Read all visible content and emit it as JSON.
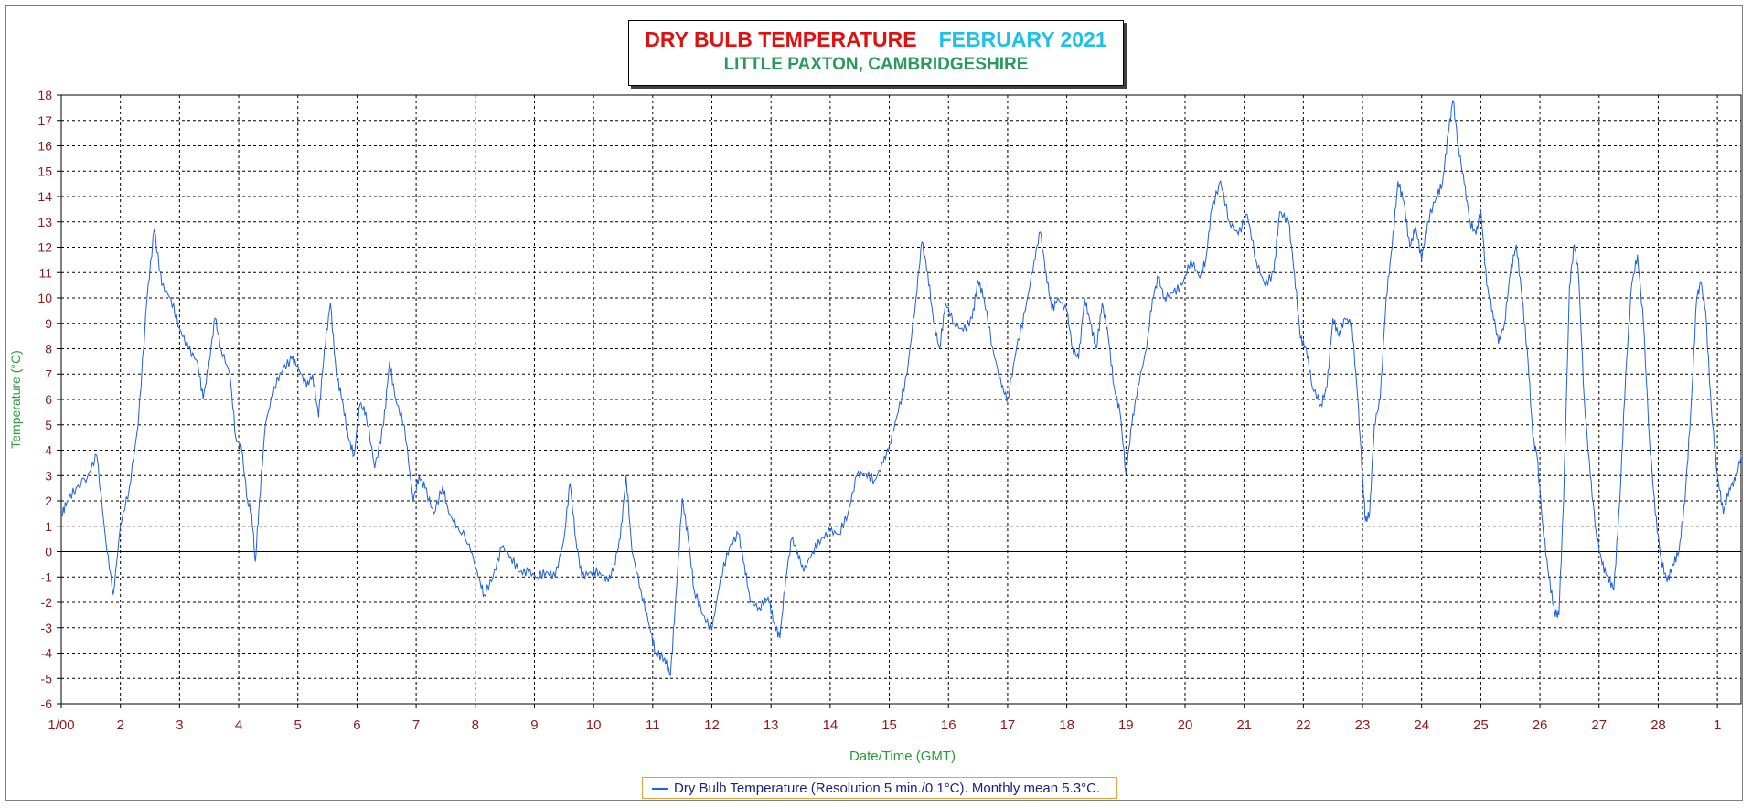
{
  "title": {
    "main": "DRY BULB TEMPERATURE",
    "month": "FEBRUARY 2021",
    "subtitle": "LITTLE PAXTON, CAMBRIDGESHIRE"
  },
  "legend": {
    "text": "Dry Bulb Temperature (Resolution 5 min./0.1°C). Monthly mean 5.3°C."
  },
  "colors": {
    "series": "#1f5fe0",
    "tick_labels": "#8b1a1a",
    "axis_labels": "#2a9a3a",
    "title_main": "#e01010",
    "title_month": "#1ec0e8",
    "subtitle": "#2a9a5a"
  },
  "chart_data": {
    "type": "line",
    "xlabel": "Date/Time (GMT)",
    "ylabel": "Temperature (°C)",
    "ylim": [
      -6,
      18
    ],
    "xlim": [
      1,
      29.4
    ],
    "grid": true,
    "legend_position": "bottom-center",
    "x_ticks": [
      {
        "x": 1,
        "label": "1/00"
      },
      {
        "x": 2,
        "label": "2"
      },
      {
        "x": 3,
        "label": "3"
      },
      {
        "x": 4,
        "label": "4"
      },
      {
        "x": 5,
        "label": "5"
      },
      {
        "x": 6,
        "label": "6"
      },
      {
        "x": 7,
        "label": "7"
      },
      {
        "x": 8,
        "label": "8"
      },
      {
        "x": 9,
        "label": "9"
      },
      {
        "x": 10,
        "label": "10"
      },
      {
        "x": 11,
        "label": "11"
      },
      {
        "x": 12,
        "label": "12"
      },
      {
        "x": 13,
        "label": "13"
      },
      {
        "x": 14,
        "label": "14"
      },
      {
        "x": 15,
        "label": "15"
      },
      {
        "x": 16,
        "label": "16"
      },
      {
        "x": 17,
        "label": "17"
      },
      {
        "x": 18,
        "label": "18"
      },
      {
        "x": 19,
        "label": "19"
      },
      {
        "x": 20,
        "label": "20"
      },
      {
        "x": 21,
        "label": "21"
      },
      {
        "x": 22,
        "label": "22"
      },
      {
        "x": 23,
        "label": "23"
      },
      {
        "x": 24,
        "label": "24"
      },
      {
        "x": 25,
        "label": "25"
      },
      {
        "x": 26,
        "label": "26"
      },
      {
        "x": 27,
        "label": "27"
      },
      {
        "x": 28,
        "label": "28"
      },
      {
        "x": 29,
        "label": "1"
      }
    ],
    "y_ticks": [
      18,
      17,
      16,
      15,
      14,
      13,
      12,
      11,
      10,
      9,
      8,
      7,
      6,
      5,
      4,
      3,
      2,
      1,
      0,
      -1,
      -2,
      -3,
      -4,
      -5,
      -6
    ],
    "series": [
      {
        "name": "Dry Bulb Temperature (Resolution 5 min./0.1°C). Monthly mean 5.3°C.",
        "points": [
          [
            1.0,
            1.4
          ],
          [
            1.1,
            2.0
          ],
          [
            1.25,
            2.5
          ],
          [
            1.45,
            3.0
          ],
          [
            1.6,
            3.8
          ],
          [
            1.75,
            0.5
          ],
          [
            1.88,
            -1.7
          ],
          [
            2.0,
            1.0
          ],
          [
            2.15,
            2.5
          ],
          [
            2.3,
            5.0
          ],
          [
            2.45,
            10.0
          ],
          [
            2.57,
            12.7
          ],
          [
            2.7,
            10.5
          ],
          [
            2.85,
            10.0
          ],
          [
            3.0,
            8.8
          ],
          [
            3.15,
            8.0
          ],
          [
            3.3,
            7.5
          ],
          [
            3.4,
            6.0
          ],
          [
            3.5,
            7.5
          ],
          [
            3.6,
            9.2
          ],
          [
            3.7,
            8.0
          ],
          [
            3.85,
            7.0
          ],
          [
            3.95,
            4.5
          ],
          [
            4.05,
            4.0
          ],
          [
            4.15,
            2.0
          ],
          [
            4.22,
            1.5
          ],
          [
            4.28,
            -0.4
          ],
          [
            4.35,
            2.0
          ],
          [
            4.45,
            5.0
          ],
          [
            4.6,
            6.5
          ],
          [
            4.75,
            7.2
          ],
          [
            4.9,
            7.6
          ],
          [
            5.0,
            7.3
          ],
          [
            5.15,
            6.5
          ],
          [
            5.25,
            7.0
          ],
          [
            5.35,
            5.3
          ],
          [
            5.45,
            8.0
          ],
          [
            5.55,
            9.8
          ],
          [
            5.65,
            7.0
          ],
          [
            5.75,
            6.0
          ],
          [
            5.85,
            4.5
          ],
          [
            5.95,
            3.8
          ],
          [
            6.05,
            5.8
          ],
          [
            6.15,
            5.5
          ],
          [
            6.3,
            3.3
          ],
          [
            6.45,
            5.0
          ],
          [
            6.55,
            7.5
          ],
          [
            6.65,
            6.0
          ],
          [
            6.8,
            5.0
          ],
          [
            6.95,
            2.0
          ],
          [
            7.05,
            3.0
          ],
          [
            7.15,
            2.5
          ],
          [
            7.3,
            1.5
          ],
          [
            7.45,
            2.6
          ],
          [
            7.55,
            1.5
          ],
          [
            7.7,
            1.0
          ],
          [
            7.9,
            0.3
          ],
          [
            8.05,
            -1.0
          ],
          [
            8.15,
            -1.7
          ],
          [
            8.3,
            -1.0
          ],
          [
            8.45,
            0.2
          ],
          [
            8.6,
            -0.2
          ],
          [
            8.75,
            -0.8
          ],
          [
            8.9,
            -0.8
          ],
          [
            9.05,
            -1.0
          ],
          [
            9.2,
            -0.8
          ],
          [
            9.35,
            -1.0
          ],
          [
            9.5,
            0.5
          ],
          [
            9.6,
            2.7
          ],
          [
            9.7,
            0.5
          ],
          [
            9.8,
            -1.0
          ],
          [
            9.95,
            -0.8
          ],
          [
            10.1,
            -0.8
          ],
          [
            10.25,
            -1.2
          ],
          [
            10.35,
            -0.5
          ],
          [
            10.45,
            0.5
          ],
          [
            10.55,
            3.0
          ],
          [
            10.65,
            0.0
          ],
          [
            10.8,
            -1.5
          ],
          [
            10.95,
            -3.0
          ],
          [
            11.05,
            -4.0
          ],
          [
            11.2,
            -4.2
          ],
          [
            11.3,
            -4.9
          ],
          [
            11.4,
            -1.5
          ],
          [
            11.5,
            2.1
          ],
          [
            11.6,
            0.5
          ],
          [
            11.7,
            -1.5
          ],
          [
            11.85,
            -2.5
          ],
          [
            12.0,
            -3.1
          ],
          [
            12.15,
            -1.0
          ],
          [
            12.3,
            0.2
          ],
          [
            12.45,
            0.7
          ],
          [
            12.55,
            -0.5
          ],
          [
            12.65,
            -2.0
          ],
          [
            12.8,
            -2.2
          ],
          [
            12.95,
            -1.8
          ],
          [
            13.05,
            -2.8
          ],
          [
            13.15,
            -3.4
          ],
          [
            13.25,
            -1.0
          ],
          [
            13.35,
            0.5
          ],
          [
            13.45,
            0.0
          ],
          [
            13.55,
            -0.8
          ],
          [
            13.7,
            0.0
          ],
          [
            13.85,
            0.5
          ],
          [
            14.0,
            0.8
          ],
          [
            14.15,
            0.7
          ],
          [
            14.3,
            1.5
          ],
          [
            14.45,
            3.0
          ],
          [
            14.6,
            3.1
          ],
          [
            14.75,
            2.8
          ],
          [
            14.9,
            3.5
          ],
          [
            15.0,
            4.2
          ],
          [
            15.15,
            5.5
          ],
          [
            15.3,
            7.0
          ],
          [
            15.45,
            10.0
          ],
          [
            15.55,
            12.2
          ],
          [
            15.65,
            11.0
          ],
          [
            15.75,
            9.0
          ],
          [
            15.85,
            8.0
          ],
          [
            15.95,
            9.8
          ],
          [
            16.1,
            9.0
          ],
          [
            16.25,
            8.7
          ],
          [
            16.4,
            9.2
          ],
          [
            16.5,
            10.7
          ],
          [
            16.6,
            10.0
          ],
          [
            16.75,
            8.0
          ],
          [
            16.9,
            6.5
          ],
          [
            17.0,
            6.0
          ],
          [
            17.15,
            8.0
          ],
          [
            17.3,
            9.5
          ],
          [
            17.45,
            11.5
          ],
          [
            17.55,
            12.6
          ],
          [
            17.65,
            11.0
          ],
          [
            17.75,
            9.5
          ],
          [
            17.85,
            10.0
          ],
          [
            18.0,
            9.5
          ],
          [
            18.1,
            8.0
          ],
          [
            18.2,
            7.6
          ],
          [
            18.3,
            10.0
          ],
          [
            18.4,
            9.0
          ],
          [
            18.5,
            8.0
          ],
          [
            18.6,
            9.8
          ],
          [
            18.7,
            8.5
          ],
          [
            18.8,
            6.5
          ],
          [
            18.9,
            5.5
          ],
          [
            19.0,
            3.1
          ],
          [
            19.1,
            5.0
          ],
          [
            19.2,
            6.5
          ],
          [
            19.35,
            8.0
          ],
          [
            19.45,
            10.0
          ],
          [
            19.55,
            10.8
          ],
          [
            19.65,
            10.0
          ],
          [
            19.8,
            10.2
          ],
          [
            19.95,
            10.5
          ],
          [
            20.1,
            11.5
          ],
          [
            20.25,
            10.8
          ],
          [
            20.35,
            11.5
          ],
          [
            20.45,
            13.5
          ],
          [
            20.6,
            14.6
          ],
          [
            20.75,
            13.0
          ],
          [
            20.9,
            12.5
          ],
          [
            21.05,
            13.3
          ],
          [
            21.2,
            11.5
          ],
          [
            21.35,
            10.5
          ],
          [
            21.5,
            11.0
          ],
          [
            21.6,
            13.4
          ],
          [
            21.75,
            13.0
          ],
          [
            21.85,
            11.0
          ],
          [
            21.95,
            8.4
          ],
          [
            22.05,
            8.0
          ],
          [
            22.15,
            6.5
          ],
          [
            22.3,
            5.8
          ],
          [
            22.4,
            6.5
          ],
          [
            22.5,
            9.2
          ],
          [
            22.6,
            8.5
          ],
          [
            22.7,
            9.2
          ],
          [
            22.82,
            9.0
          ],
          [
            22.92,
            6.0
          ],
          [
            23.0,
            3.0
          ],
          [
            23.05,
            1.2
          ],
          [
            23.12,
            1.5
          ],
          [
            23.2,
            5.0
          ],
          [
            23.3,
            6.0
          ],
          [
            23.4,
            10.0
          ],
          [
            23.5,
            12.0
          ],
          [
            23.6,
            14.6
          ],
          [
            23.7,
            13.8
          ],
          [
            23.8,
            12.0
          ],
          [
            23.9,
            12.8
          ],
          [
            24.0,
            11.5
          ],
          [
            24.1,
            13.0
          ],
          [
            24.25,
            14.0
          ],
          [
            24.35,
            14.5
          ],
          [
            24.45,
            16.5
          ],
          [
            24.53,
            17.8
          ],
          [
            24.62,
            16.0
          ],
          [
            24.72,
            14.5
          ],
          [
            24.82,
            13.0
          ],
          [
            24.92,
            12.5
          ],
          [
            25.0,
            13.5
          ],
          [
            25.1,
            10.5
          ],
          [
            25.2,
            9.5
          ],
          [
            25.3,
            8.2
          ],
          [
            25.4,
            9.0
          ],
          [
            25.5,
            11.0
          ],
          [
            25.6,
            12.1
          ],
          [
            25.7,
            10.0
          ],
          [
            25.8,
            7.5
          ],
          [
            25.88,
            4.5
          ],
          [
            25.95,
            3.8
          ],
          [
            26.05,
            1.0
          ],
          [
            26.15,
            -1.0
          ],
          [
            26.25,
            -2.4
          ],
          [
            26.32,
            -2.5
          ],
          [
            26.4,
            2.0
          ],
          [
            26.5,
            10.5
          ],
          [
            26.58,
            12.1
          ],
          [
            26.65,
            11.0
          ],
          [
            26.75,
            6.0
          ],
          [
            26.85,
            3.0
          ],
          [
            26.95,
            0.8
          ],
          [
            27.05,
            -0.5
          ],
          [
            27.15,
            -1.0
          ],
          [
            27.25,
            -1.5
          ],
          [
            27.35,
            2.0
          ],
          [
            27.45,
            7.0
          ],
          [
            27.55,
            10.5
          ],
          [
            27.65,
            11.7
          ],
          [
            27.75,
            9.0
          ],
          [
            27.85,
            4.5
          ],
          [
            27.95,
            1.5
          ],
          [
            28.05,
            -0.3
          ],
          [
            28.15,
            -1.2
          ],
          [
            28.25,
            -0.5
          ],
          [
            28.35,
            0.0
          ],
          [
            28.45,
            2.0
          ],
          [
            28.55,
            5.5
          ],
          [
            28.65,
            10.0
          ],
          [
            28.72,
            10.6
          ],
          [
            28.8,
            9.5
          ],
          [
            28.9,
            5.5
          ],
          [
            29.0,
            3.0
          ],
          [
            29.1,
            1.5
          ],
          [
            29.2,
            2.5
          ],
          [
            29.3,
            2.8
          ],
          [
            29.4,
            3.8
          ]
        ]
      }
    ]
  }
}
